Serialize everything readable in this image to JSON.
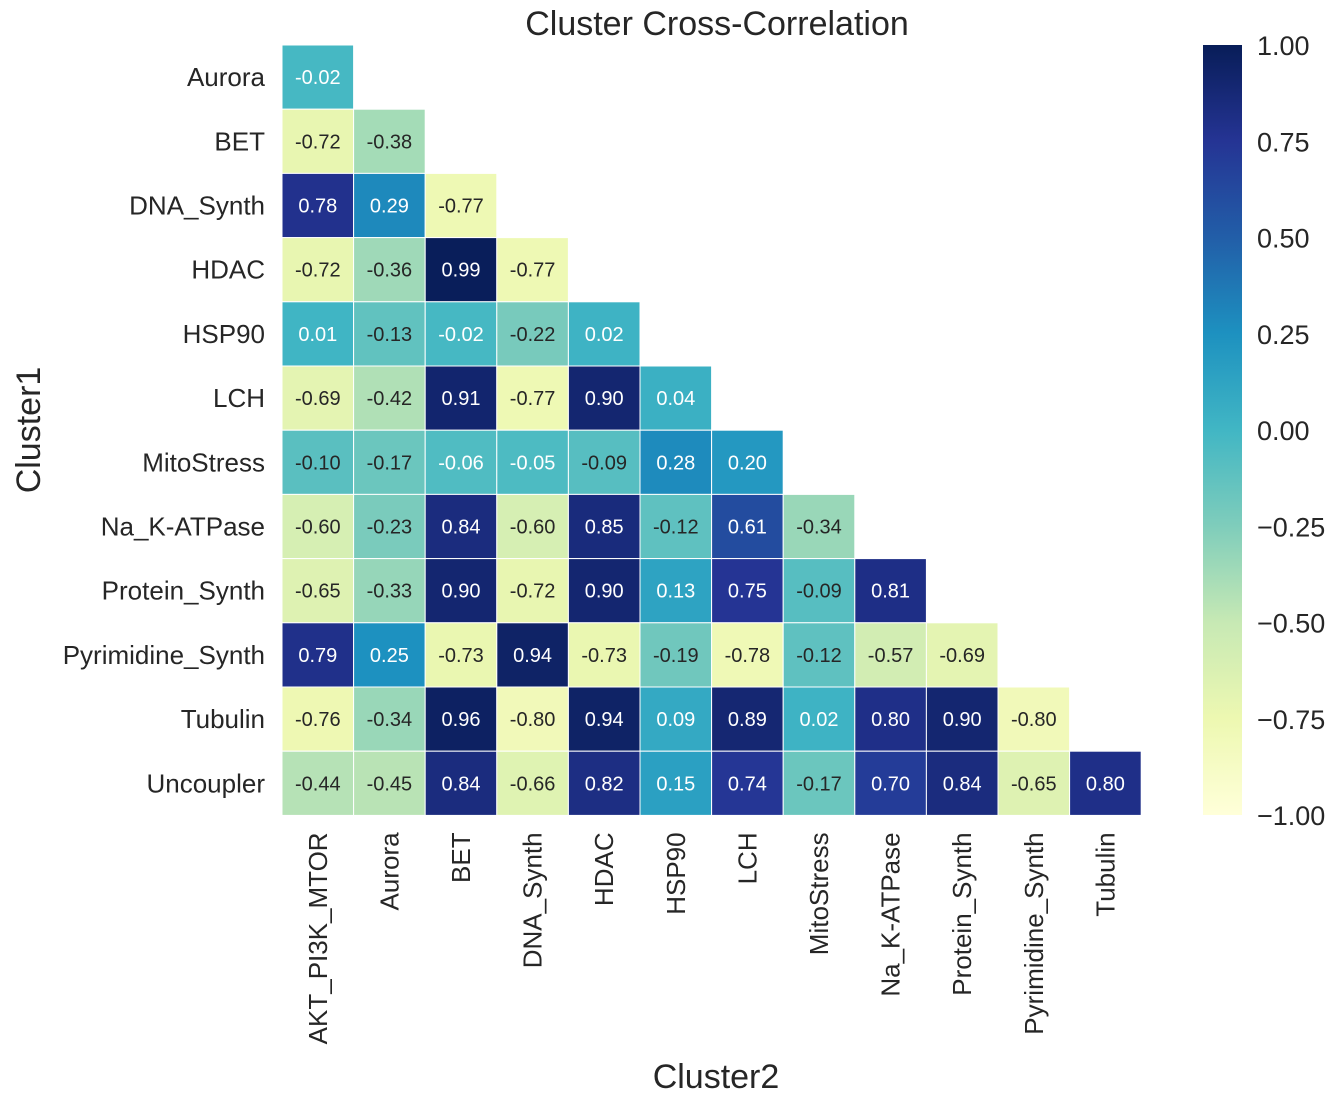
{
  "chart_data": {
    "type": "heatmap",
    "title": "Cluster Cross-Correlation",
    "xlabel": "Cluster2",
    "ylabel": "Cluster1",
    "x_categories": [
      "AKT_PI3K_MTOR",
      "Aurora",
      "BET",
      "DNA_Synth",
      "HDAC",
      "HSP90",
      "LCH",
      "MitoStress",
      "Na_K-ATPase",
      "Protein_Synth",
      "Pyrimidine_Synth",
      "Tubulin"
    ],
    "y_categories": [
      "Aurora",
      "BET",
      "DNA_Synth",
      "HDAC",
      "HSP90",
      "LCH",
      "MitoStress",
      "Na_K-ATPase",
      "Protein_Synth",
      "Pyrimidine_Synth",
      "Tubulin",
      "Uncoupler"
    ],
    "values": [
      [
        -0.02
      ],
      [
        -0.72,
        -0.38
      ],
      [
        0.78,
        0.29,
        -0.77
      ],
      [
        -0.72,
        -0.36,
        0.99,
        -0.77
      ],
      [
        0.01,
        -0.13,
        -0.02,
        -0.22,
        0.02
      ],
      [
        -0.69,
        -0.42,
        0.91,
        -0.77,
        0.9,
        0.04
      ],
      [
        -0.1,
        -0.17,
        -0.06,
        -0.05,
        -0.09,
        0.28,
        0.2
      ],
      [
        -0.6,
        -0.23,
        0.84,
        -0.6,
        0.85,
        -0.12,
        0.61,
        -0.34
      ],
      [
        -0.65,
        -0.33,
        0.9,
        -0.72,
        0.9,
        0.13,
        0.75,
        -0.09,
        0.81
      ],
      [
        0.79,
        0.25,
        -0.73,
        0.94,
        -0.73,
        -0.19,
        -0.78,
        -0.12,
        -0.57,
        -0.69
      ],
      [
        -0.76,
        -0.34,
        0.96,
        -0.8,
        0.94,
        0.09,
        0.89,
        0.02,
        0.8,
        0.9,
        -0.8
      ],
      [
        -0.44,
        -0.45,
        0.84,
        -0.66,
        0.82,
        0.15,
        0.74,
        -0.17,
        0.7,
        0.84,
        -0.65,
        0.8
      ]
    ],
    "colorbar": {
      "min": -1.0,
      "max": 1.0,
      "colormap": "YlGnBu",
      "ticks": [
        "1.00",
        "0.75",
        "0.50",
        "0.25",
        "0.00",
        "−0.25",
        "−0.50",
        "−0.75",
        "−1.00"
      ],
      "tick_values": [
        1.0,
        0.75,
        0.5,
        0.25,
        0.0,
        -0.25,
        -0.5,
        -0.75,
        -1.0
      ]
    },
    "grid": false,
    "legend": "colorbar-right"
  }
}
